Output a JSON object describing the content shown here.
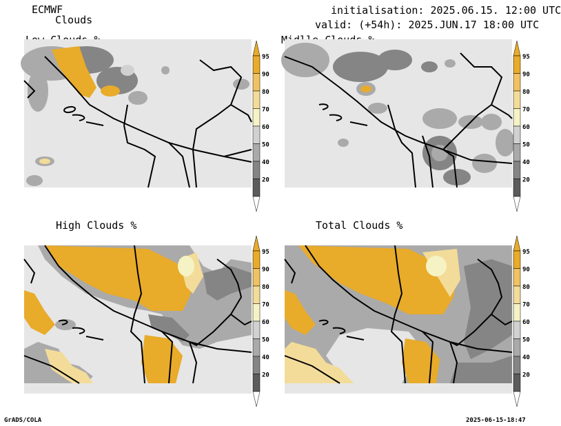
{
  "header": {
    "model": "ECMWF",
    "product": "Clouds",
    "init": "initialisation: 2025.06.15. 12:00 UTC",
    "valid": "valid: (+54h): 2025.JUN.17 18:00 UTC"
  },
  "panels": [
    {
      "title": "Low Clouds %"
    },
    {
      "title": "Midlle Clouds %"
    },
    {
      "title": "High Clouds %"
    },
    {
      "title": "Total Clouds %"
    }
  ],
  "colorbar": {
    "labels": [
      "95",
      "90",
      "80",
      "70",
      "60",
      "50",
      "40",
      "20"
    ],
    "colors": [
      "#e8ab2a",
      "#f0c262",
      "#f3dc99",
      "#f5f3c4",
      "#d1d1d1",
      "#aaaaaa",
      "#858585",
      "#5c5c5c"
    ]
  },
  "footer": {
    "left": "GrADS/COLA",
    "right": "2025-06-15-18:47"
  }
}
